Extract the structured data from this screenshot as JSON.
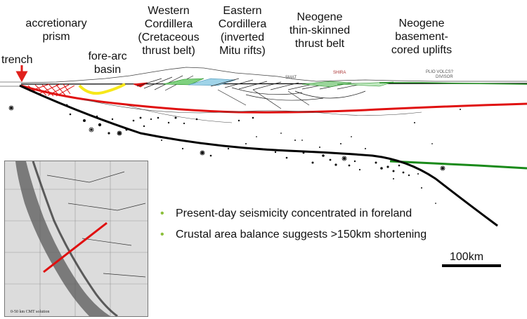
{
  "labels": {
    "trench": "trench",
    "accretionary_prism": [
      "accretionary",
      "prism"
    ],
    "fore_arc_basin": [
      "fore-arc",
      "basin"
    ],
    "western_cordillera": [
      "Western",
      "Cordillera",
      "(Cretaceous",
      "thrust belt)"
    ],
    "eastern_cordillera": [
      "Eastern",
      "Cordillera",
      "(inverted",
      "Mitu rifts)"
    ],
    "neogene_thin": [
      "Neogene",
      "thin-skinned",
      "thrust belt"
    ],
    "neogene_basement": [
      "Neogene",
      "basement-",
      "cored uplifts"
    ]
  },
  "section_annotations": {
    "smat": "SMAT",
    "shira": "SHIRA",
    "plio_volcs": "PLIO VOLCS?",
    "divisor": "DIVISOR"
  },
  "bullets": [
    "Present-day seismicity concentrated in foreland",
    "Crustal area balance suggests >150km shortening"
  ],
  "scale": {
    "label": "100km"
  },
  "inset": {
    "caption": "0-50 km CMT solution"
  },
  "colors": {
    "trench_arrow": "#e0201c",
    "moho_red": "#e01010",
    "fore_arc_yellow": "#f7e81a",
    "slab": "#000000",
    "green_line": "#1a8a1a",
    "bullet": "#8bbf3a"
  }
}
